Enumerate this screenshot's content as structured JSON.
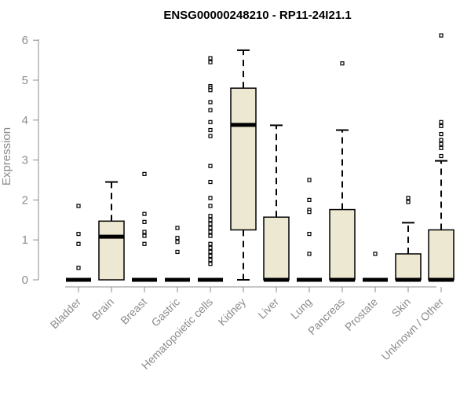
{
  "chart_data": {
    "type": "box",
    "title": "ENSG00000248210 - RP11-24I21.1",
    "xlabel": "",
    "ylabel": "Expression",
    "ylim": [
      0,
      6.2
    ],
    "yticks": [
      0,
      1,
      2,
      3,
      4,
      5,
      6
    ],
    "box_fill": "#ede8d1",
    "categories": [
      "Bladder",
      "Brain",
      "Breast",
      "Gastric",
      "Hematopoietic cells",
      "Kidney",
      "Liver",
      "Lung",
      "Pancreas",
      "Prostate",
      "Skin",
      "Unknown / Other"
    ],
    "boxes": [
      {
        "category": "Bladder",
        "q1": 0,
        "median": 0,
        "q3": 0,
        "whisker_low": 0,
        "whisker_high": 0,
        "outliers": [
          1.85,
          1.15,
          0.9,
          0.3
        ]
      },
      {
        "category": "Brain",
        "q1": 0,
        "median": 1.08,
        "q3": 1.47,
        "whisker_low": 0,
        "whisker_high": 2.45,
        "outliers": []
      },
      {
        "category": "Breast",
        "q1": 0,
        "median": 0,
        "q3": 0,
        "whisker_low": 0,
        "whisker_high": 0,
        "outliers": [
          2.65,
          1.65,
          1.45,
          1.2,
          1.1,
          0.9
        ]
      },
      {
        "category": "Gastric",
        "q1": 0,
        "median": 0,
        "q3": 0,
        "whisker_low": 0,
        "whisker_high": 0,
        "outliers": [
          1.3,
          1.05,
          0.95,
          0.7
        ]
      },
      {
        "category": "Hematopoietic cells",
        "q1": 0,
        "median": 0,
        "q3": 0,
        "whisker_low": 0,
        "whisker_high": 0,
        "outliers": [
          5.55,
          5.45,
          4.85,
          4.8,
          4.75,
          4.45,
          4.25,
          3.95,
          3.75,
          3.6,
          2.85,
          2.45,
          2.05,
          1.85,
          1.6,
          1.5,
          1.4,
          1.3,
          1.2,
          1.1,
          0.9,
          0.8,
          0.7,
          0.6,
          0.5,
          0.4
        ]
      },
      {
        "category": "Kidney",
        "q1": 1.25,
        "median": 3.88,
        "q3": 4.8,
        "whisker_low": 0,
        "whisker_high": 5.75,
        "outliers": []
      },
      {
        "category": "Liver",
        "q1": 0,
        "median": 0,
        "q3": 1.57,
        "whisker_low": 0,
        "whisker_high": 3.87,
        "outliers": []
      },
      {
        "category": "Lung",
        "q1": 0,
        "median": 0,
        "q3": 0,
        "whisker_low": 0,
        "whisker_high": 0,
        "outliers": [
          2.5,
          2.0,
          1.75,
          1.7,
          1.15,
          0.65
        ]
      },
      {
        "category": "Pancreas",
        "q1": 0,
        "median": 0,
        "q3": 1.76,
        "whisker_low": 0,
        "whisker_high": 3.75,
        "outliers": [
          5.42
        ]
      },
      {
        "category": "Prostate",
        "q1": 0,
        "median": 0,
        "q3": 0,
        "whisker_low": 0,
        "whisker_high": 0,
        "outliers": [
          0.65
        ]
      },
      {
        "category": "Skin",
        "q1": 0,
        "median": 0,
        "q3": 0.65,
        "whisker_low": 0,
        "whisker_high": 1.43,
        "outliers": [
          2.05,
          1.95
        ]
      },
      {
        "category": "Unknown / Other",
        "q1": 0,
        "median": 0,
        "q3": 1.25,
        "whisker_low": 0,
        "whisker_high": 2.98,
        "outliers": [
          6.12,
          3.95,
          3.85,
          3.65,
          3.5,
          3.4,
          3.3,
          3.1
        ]
      }
    ]
  }
}
